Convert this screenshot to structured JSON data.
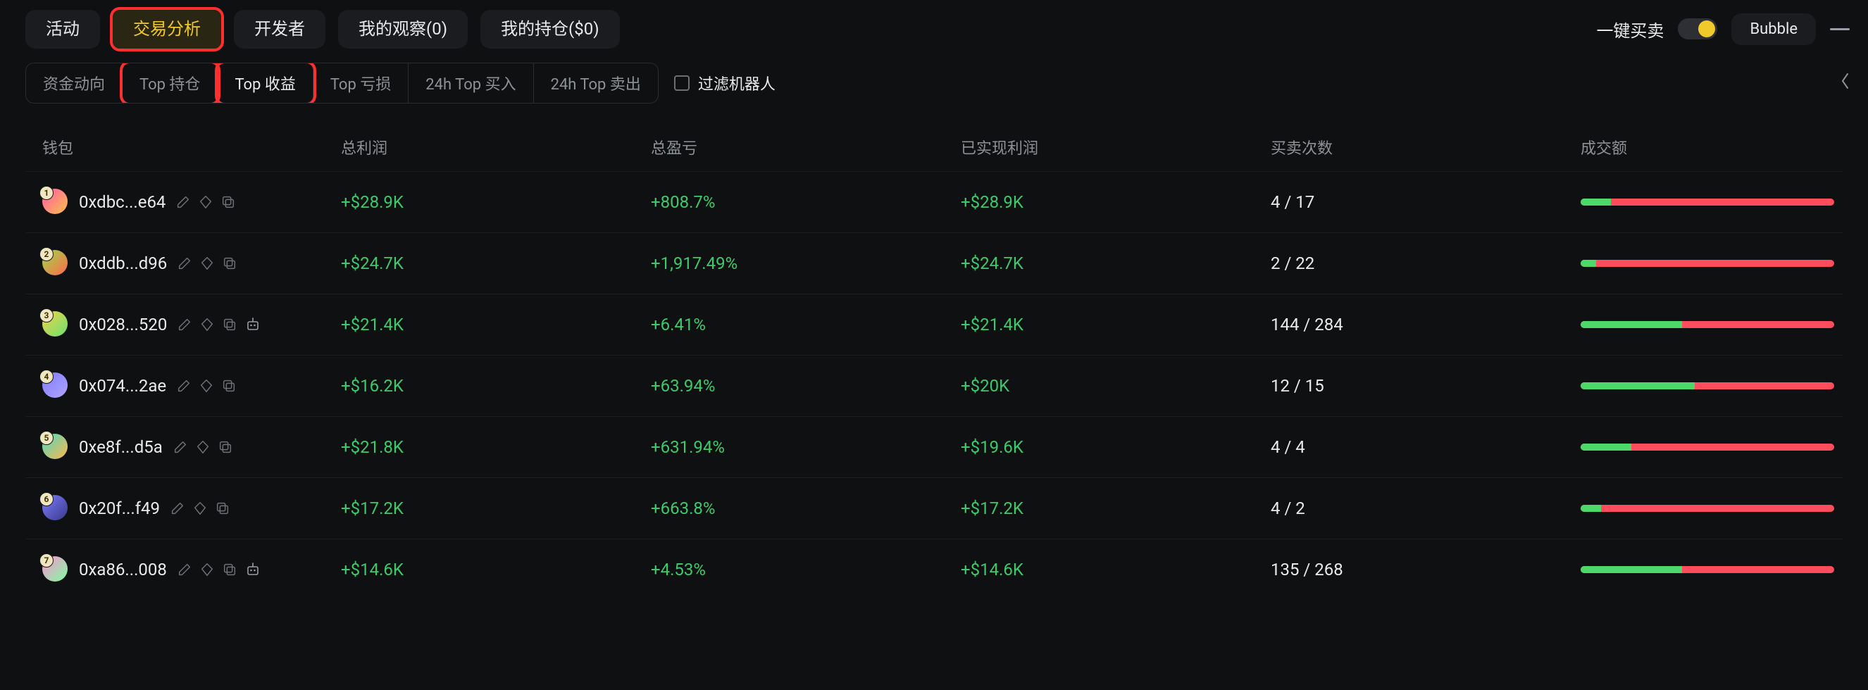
{
  "colors": {
    "bg": "#0f1012",
    "text": "#e9eaec",
    "muted": "#8e9196",
    "green": "#3ec96b",
    "bar_green": "#4cd96a",
    "bar_red": "#ff4d5e",
    "highlight": "#ff2f2f",
    "active_text": "#f0c92b"
  },
  "top_tabs": {
    "items": [
      {
        "label": "活动",
        "active": false,
        "highlighted": false
      },
      {
        "label": "交易分析",
        "active": true,
        "highlighted": true
      },
      {
        "label": "开发者",
        "active": false,
        "highlighted": false
      },
      {
        "label": "我的观察(0)",
        "active": false,
        "highlighted": false
      },
      {
        "label": "我的持仓($0)",
        "active": false,
        "highlighted": false
      }
    ]
  },
  "top_right": {
    "quick_label": "一键买卖",
    "toggle_on": true,
    "bubble_label": "Bubble"
  },
  "sub_tabs": {
    "items": [
      {
        "label": "资金动向",
        "active": false,
        "highlighted": false
      },
      {
        "label": "Top 持仓",
        "active": false,
        "highlighted": true
      },
      {
        "label": "Top 收益",
        "active": true,
        "highlighted": true
      },
      {
        "label": "Top 亏损",
        "active": false,
        "highlighted": false
      },
      {
        "label": "24h Top 买入",
        "active": false,
        "highlighted": false
      },
      {
        "label": "24h Top 卖出",
        "active": false,
        "highlighted": false
      }
    ],
    "filter_label": "过滤机器人",
    "filter_checked": false
  },
  "table": {
    "columns": [
      {
        "key": "wallet",
        "label": "钱包"
      },
      {
        "key": "total_profit",
        "label": "总利润"
      },
      {
        "key": "total_pnl",
        "label": "总盈亏"
      },
      {
        "key": "realized_profit",
        "label": "已实现利润"
      },
      {
        "key": "trades",
        "label": "买卖次数"
      },
      {
        "key": "volume",
        "label": "成交额"
      }
    ],
    "rows": [
      {
        "rank": 1,
        "avatar_colors": [
          "#ff5aa9",
          "#ffc04a"
        ],
        "address": "0xdbc...e64",
        "has_bot_icon": false,
        "total_profit": "+$28.9K",
        "total_pnl": "+808.7%",
        "realized_profit": "+$28.9K",
        "trades": "4 / 17",
        "volume_bar_green_pct": 12
      },
      {
        "rank": 2,
        "avatar_colors": [
          "#9dd84b",
          "#ff6b4a"
        ],
        "address": "0xddb...d96",
        "has_bot_icon": false,
        "total_profit": "+$24.7K",
        "total_pnl": "+1,917.49%",
        "realized_profit": "+$24.7K",
        "trades": "2 / 22",
        "volume_bar_green_pct": 6
      },
      {
        "rank": 3,
        "avatar_colors": [
          "#f4d24a",
          "#6ae26f"
        ],
        "address": "0x028...520",
        "has_bot_icon": true,
        "total_profit": "+$21.4K",
        "total_pnl": "+6.41%",
        "realized_profit": "+$21.4K",
        "trades": "144 / 284",
        "volume_bar_green_pct": 40
      },
      {
        "rank": 4,
        "avatar_colors": [
          "#7e7bff",
          "#b0a5ff"
        ],
        "address": "0x074...2ae",
        "has_bot_icon": false,
        "total_profit": "+$16.2K",
        "total_pnl": "+63.94%",
        "realized_profit": "+$20K",
        "trades": "12 / 15",
        "volume_bar_green_pct": 45
      },
      {
        "rank": 5,
        "avatar_colors": [
          "#4ad9c4",
          "#ffb84a"
        ],
        "address": "0xe8f...d5a",
        "has_bot_icon": false,
        "total_profit": "+$21.8K",
        "total_pnl": "+631.94%",
        "realized_profit": "+$19.6K",
        "trades": "4 / 4",
        "volume_bar_green_pct": 20
      },
      {
        "rank": 6,
        "avatar_colors": [
          "#7c7cff",
          "#3a3a8a"
        ],
        "address": "0x20f...f49",
        "has_bot_icon": false,
        "total_profit": "+$17.2K",
        "total_pnl": "+663.8%",
        "realized_profit": "+$17.2K",
        "trades": "4 / 2",
        "volume_bar_green_pct": 8
      },
      {
        "rank": 7,
        "avatar_colors": [
          "#ff8fd6",
          "#7dff9f"
        ],
        "address": "0xa86...008",
        "has_bot_icon": true,
        "total_profit": "+$14.6K",
        "total_pnl": "+4.53%",
        "realized_profit": "+$14.6K",
        "trades": "135 / 268",
        "volume_bar_green_pct": 40
      }
    ]
  }
}
